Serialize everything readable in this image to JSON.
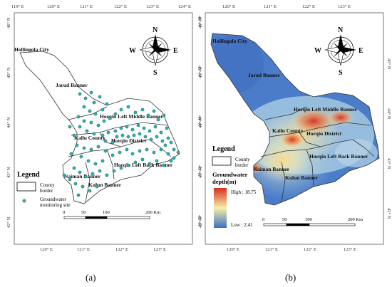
{
  "panel_a": {
    "caption": "(a)",
    "top_ticks": [
      "119° E",
      "120° E",
      "121° E",
      "122° E",
      "123° E",
      "124° E"
    ],
    "bottom_ticks": [
      "120° E",
      "121° E",
      "122° E",
      "123° E"
    ],
    "left_ticks": [
      "46° N",
      "45° N",
      "44° N",
      "43° N",
      "42° N"
    ],
    "right_ticks": [
      "46° N",
      "45° N",
      "44° N",
      "43° N",
      "42° N"
    ],
    "counties": [
      "Hollingola City",
      "Jarud Banner",
      "Horqin Left Middle Banner",
      "Kailu County",
      "Horqin District",
      "Horqin Left Back Banner",
      "Naiman Banner",
      "Kulun Banner"
    ],
    "legend": {
      "title": "Legend",
      "border_label_1": "County",
      "border_label_2": "border",
      "site_label_1": "Groundwater",
      "site_label_2": "monitoring site"
    },
    "scale": {
      "labels": [
        "0",
        "50",
        "100",
        "200 Km"
      ]
    },
    "compass": {
      "n": "N",
      "s": "S",
      "e": "E",
      "w": "W"
    },
    "colors": {
      "boundary": "#333333",
      "site_fill": "#2bb5b5",
      "site_stroke": "#1a4a4a"
    }
  },
  "panel_b": {
    "caption": "(b)",
    "top_ticks": [
      "120° E",
      "121° E",
      "122° E",
      "123° E"
    ],
    "bottom_ticks": [
      "120° E",
      "121° E",
      "122° E",
      "123° E"
    ],
    "left_ticks": [
      "46° N",
      "45° N",
      "44° N",
      "43° N",
      "42° N"
    ],
    "right_ticks": [
      "45° N",
      "44° N",
      "43° N",
      "42° N"
    ],
    "counties": [
      "Hollingola City",
      "Jarud Banner",
      "Horqin Left Middle Banner",
      "Kailu County",
      "Horqin District",
      "Horqin Left Back Banner",
      "Naiman Banner",
      "Kulun Banner"
    ],
    "legend": {
      "title": "Legend",
      "border_label_1": "County",
      "border_label_2": "border",
      "depth_title_1": "Groundwater",
      "depth_title_2": "depth(m)",
      "high_label": "High : 18.75",
      "low_label": "Low : 2.41"
    },
    "scale": {
      "labels": [
        "0",
        "50",
        "100",
        "200 Km"
      ]
    },
    "compass": {
      "n": "N",
      "s": "S",
      "e": "E",
      "w": "W"
    },
    "colors": {
      "low": "#3a6fc4",
      "mid": "#f5f0a8",
      "high": "#d7301f"
    }
  }
}
